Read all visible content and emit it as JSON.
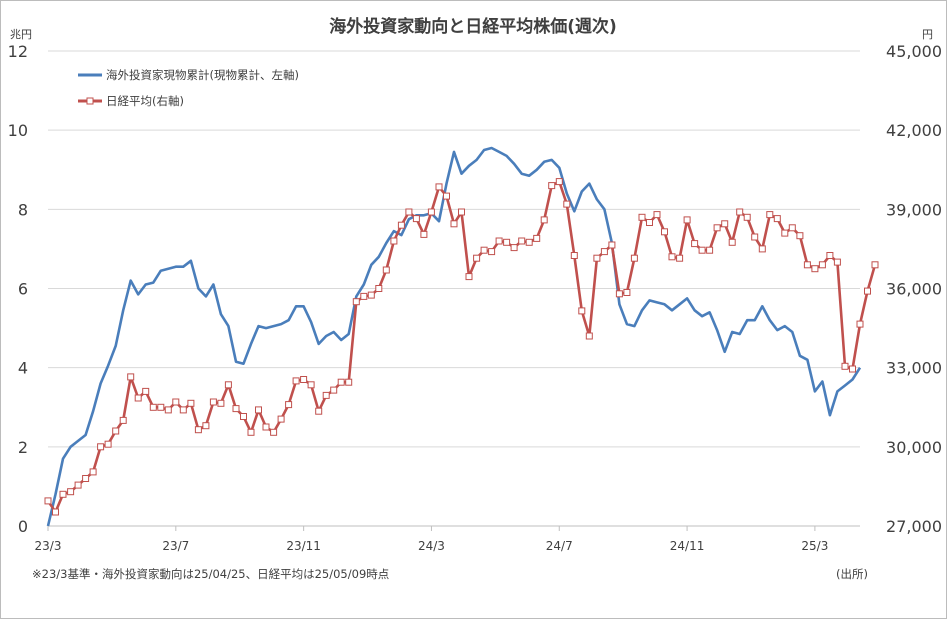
{
  "chart_data": {
    "type": "line",
    "title": "海外投資家動向と日経平均株価(週次)",
    "y_left_unit": "兆円",
    "y_right_unit": "円",
    "y_left": {
      "min": 0,
      "max": 12,
      "ticks": [
        "0",
        "2",
        "4",
        "6",
        "8",
        "10",
        "12"
      ]
    },
    "y_right": {
      "min": 27000,
      "max": 45000,
      "ticks": [
        "27,000",
        "30,000",
        "33,000",
        "36,000",
        "39,000",
        "42,000",
        "45,000"
      ]
    },
    "grid": true,
    "legend_position": "top-left",
    "x_tick_labels": [
      {
        "label": "23/3",
        "index": 0
      },
      {
        "label": "23/7",
        "index": 17
      },
      {
        "label": "23/11",
        "index": 34
      },
      {
        "label": "24/3",
        "index": 51
      },
      {
        "label": "24/7",
        "index": 68
      },
      {
        "label": "24/11",
        "index": 85
      },
      {
        "label": "25/3",
        "index": 102
      }
    ],
    "series": [
      {
        "name": "海外投資家現物累計(現物累計、左軸)",
        "axis": "left",
        "color": "#4a7ebb",
        "values": [
          0.0,
          0.8,
          1.7,
          2.0,
          2.15,
          2.3,
          2.9,
          3.6,
          4.05,
          4.55,
          5.45,
          6.2,
          5.85,
          6.1,
          6.15,
          6.45,
          6.5,
          6.55,
          6.55,
          6.7,
          6.0,
          5.8,
          6.1,
          5.35,
          5.05,
          4.15,
          4.1,
          4.6,
          5.05,
          5.0,
          5.05,
          5.1,
          5.2,
          5.55,
          5.55,
          5.15,
          4.6,
          4.8,
          4.9,
          4.7,
          4.85,
          5.8,
          6.1,
          6.6,
          6.8,
          7.15,
          7.45,
          7.35,
          7.75,
          7.85,
          7.85,
          7.9,
          7.7,
          8.65,
          9.45,
          8.9,
          9.1,
          9.25,
          9.5,
          9.55,
          9.45,
          9.35,
          9.15,
          8.9,
          8.85,
          9.0,
          9.2,
          9.25,
          9.05,
          8.4,
          7.95,
          8.45,
          8.65,
          8.25,
          8.0,
          7.15,
          5.6,
          5.1,
          5.05,
          5.45,
          5.7,
          5.65,
          5.6,
          5.45,
          5.6,
          5.75,
          5.45,
          5.3,
          5.4,
          4.95,
          4.4,
          4.9,
          4.85,
          5.2,
          5.2,
          5.55,
          5.2,
          4.95,
          5.05,
          4.9,
          4.3,
          4.2,
          3.4,
          3.65,
          2.8,
          3.4,
          3.55,
          3.7,
          4.0
        ]
      },
      {
        "name": "日経平均(右軸)",
        "axis": "right",
        "color": "#c0504d",
        "values": [
          27950,
          27530,
          28200,
          28300,
          28550,
          28800,
          29050,
          30000,
          30100,
          30600,
          31000,
          32650,
          31850,
          32100,
          31500,
          31500,
          31400,
          31700,
          31400,
          31650,
          30650,
          30800,
          31700,
          31650,
          32350,
          31450,
          31150,
          30550,
          31400,
          30750,
          30550,
          31050,
          31600,
          32500,
          32550,
          32350,
          31350,
          31950,
          32150,
          32450,
          32450,
          35500,
          35700,
          35750,
          36000,
          36700,
          37800,
          38400,
          38900,
          38650,
          38050,
          38900,
          39850,
          39500,
          38450,
          38900,
          36450,
          37150,
          37450,
          37400,
          37800,
          37750,
          37550,
          37800,
          37750,
          37900,
          38600,
          39900,
          40050,
          39200,
          37250,
          35150,
          34200,
          37150,
          37400,
          37650,
          35800,
          35850,
          37150,
          38700,
          38500,
          38800,
          38150,
          37200,
          37150,
          38600,
          37700,
          37450,
          37450,
          38300,
          38450,
          37750,
          38900,
          38700,
          37950,
          37500,
          38800,
          38650,
          38100,
          38300,
          38000,
          36900,
          36750,
          36900,
          37250,
          37000,
          33050,
          32950,
          34650,
          35900,
          36900
        ]
      }
    ],
    "footnote": "※23/3基準・海外投資家動向は25/04/25、日経平均は25/05/09時点",
    "source": "(出所)"
  }
}
